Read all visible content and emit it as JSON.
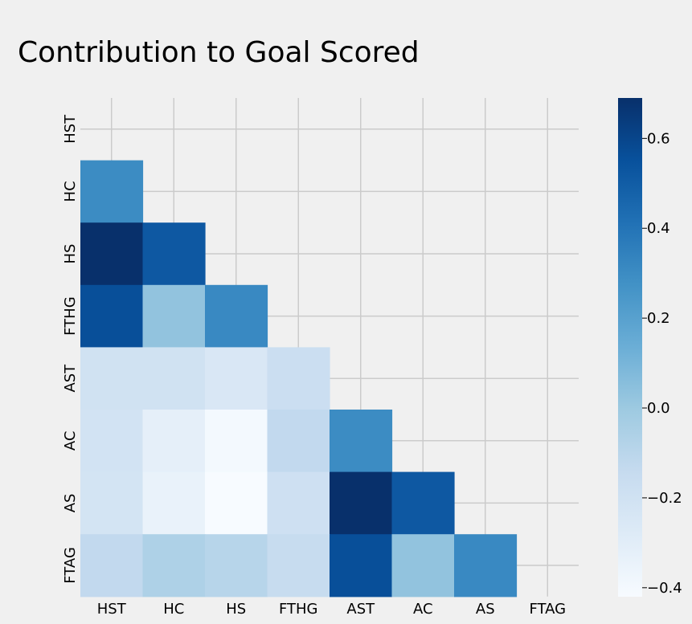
{
  "chart_data": {
    "type": "heatmap",
    "title": "Contribution to Goal Scored",
    "variables": [
      "HST",
      "HC",
      "HS",
      "FTHG",
      "AST",
      "AC",
      "AS",
      "FTAG"
    ],
    "mask": "upper-triangle-including-diagonal",
    "matrix": [
      [
        null,
        null,
        null,
        null,
        null,
        null,
        null,
        null
      ],
      [
        0.3,
        null,
        null,
        null,
        null,
        null,
        null,
        null
      ],
      [
        0.69,
        0.52,
        null,
        null,
        null,
        null,
        null,
        null
      ],
      [
        0.56,
        0.03,
        0.31,
        null,
        null,
        null,
        null,
        null
      ],
      [
        -0.2,
        -0.2,
        -0.25,
        -0.17,
        null,
        null,
        null,
        null
      ],
      [
        -0.21,
        -0.32,
        -0.4,
        -0.13,
        0.3,
        null,
        null,
        null
      ],
      [
        -0.22,
        -0.34,
        -0.42,
        -0.19,
        0.69,
        0.52,
        null,
        null
      ],
      [
        -0.13,
        -0.06,
        -0.09,
        -0.15,
        0.56,
        0.03,
        0.31,
        null
      ]
    ],
    "colorscale": "Blues",
    "vmin": -0.42,
    "vmax": 0.69,
    "colorbar": {
      "ticks": [
        0.6,
        0.4,
        0.2,
        0.0,
        -0.2,
        -0.4
      ],
      "tick_labels": [
        "0.6",
        "0.4",
        "0.2",
        "0.0",
        "−0.2",
        "−0.4"
      ]
    },
    "grid": true
  }
}
